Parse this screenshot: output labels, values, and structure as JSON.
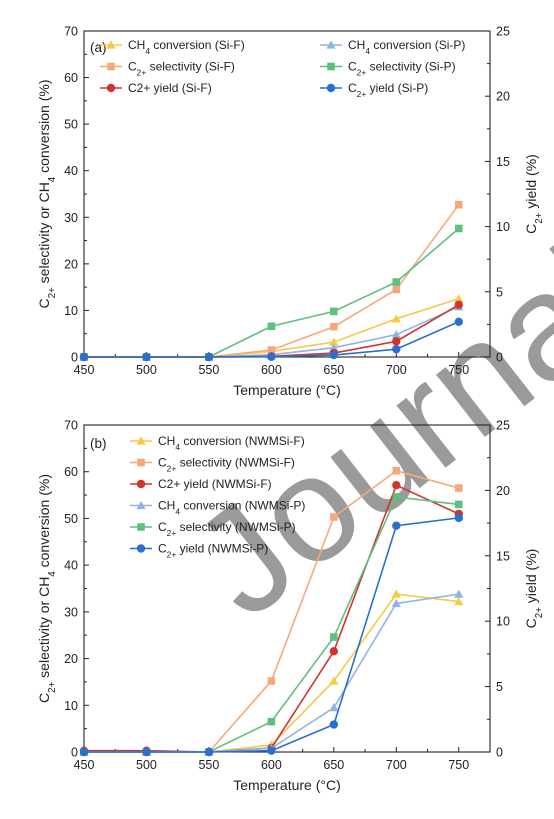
{
  "watermark": "Journal Pre-proof",
  "colors": {
    "ch4_f": "#f7c948",
    "c2sel_f": "#f5a97a",
    "yield_f": "#d0342c",
    "ch4_p": "#8fb4e3",
    "c2sel_p": "#5fbf80",
    "yield_p": "#2a6fd0"
  },
  "chart_data": [
    {
      "type": "line",
      "panel_label": "(a)",
      "xlabel_parts": [
        "Temperature (",
        "°",
        "C)"
      ],
      "ylabel_parts": [
        {
          "t": "C",
          "s": ""
        },
        {
          "t": "2+",
          "s": "sub"
        },
        {
          "t": " selectivity or CH",
          "s": ""
        },
        {
          "t": "4",
          "s": "sub"
        },
        {
          "t": " conversion (%)",
          "s": ""
        }
      ],
      "y2label_parts": [
        {
          "t": "C",
          "s": ""
        },
        {
          "t": "2+",
          "s": "sub"
        },
        {
          "t": " yield (%)",
          "s": ""
        }
      ],
      "x": [
        450,
        500,
        550,
        600,
        650,
        700,
        750
      ],
      "xlim": [
        450,
        775
      ],
      "ylim": [
        0,
        70
      ],
      "y2lim": [
        0,
        25
      ],
      "xticks": [
        "450",
        "500",
        "550",
        "600",
        "650",
        "700",
        "750"
      ],
      "yticks": [
        "0",
        "10",
        "20",
        "30",
        "40",
        "50",
        "60",
        "70"
      ],
      "y2ticks": [
        "0",
        "5",
        "10",
        "15",
        "20",
        "25"
      ],
      "legend_columns": 2,
      "series": [
        {
          "key": "ch4_f",
          "name_parts": [
            {
              "t": "CH",
              "s": ""
            },
            {
              "t": "4",
              "s": "sub"
            },
            {
              "t": " conversion (Si-F)",
              "s": ""
            }
          ],
          "marker": "triangle",
          "axis": "left",
          "values": [
            0,
            0,
            0,
            1.2,
            3.2,
            8.2,
            12.5
          ]
        },
        {
          "key": "ch4_p",
          "name_parts": [
            {
              "t": "CH",
              "s": ""
            },
            {
              "t": "4",
              "s": "sub"
            },
            {
              "t": " conversion (Si-P)",
              "s": ""
            }
          ],
          "marker": "triangle",
          "axis": "left",
          "values": [
            0,
            0,
            0,
            0.5,
            2.0,
            4.8,
            10.8
          ]
        },
        {
          "key": "c2sel_f",
          "name_parts": [
            {
              "t": "C",
              "s": ""
            },
            {
              "t": "2+",
              "s": "sub"
            },
            {
              "t": " selectivity (Si-F)",
              "s": ""
            }
          ],
          "marker": "square",
          "axis": "left",
          "values": [
            0,
            0,
            0,
            1.5,
            6.5,
            14.5,
            32.7
          ]
        },
        {
          "key": "c2sel_p",
          "name_parts": [
            {
              "t": "C",
              "s": ""
            },
            {
              "t": "2+",
              "s": "sub"
            },
            {
              "t": " selectivity (Si-P)",
              "s": ""
            }
          ],
          "marker": "square",
          "axis": "left",
          "values": [
            0,
            0,
            0,
            6.6,
            9.8,
            16.1,
            27.6
          ]
        },
        {
          "key": "yield_f",
          "name_parts": [
            {
              "t": "C2+ yield (Si-F)",
              "s": ""
            }
          ],
          "marker": "circle",
          "axis": "right",
          "values": [
            0,
            0,
            0,
            0.05,
            0.3,
            1.2,
            4.0
          ]
        },
        {
          "key": "yield_p",
          "name_parts": [
            {
              "t": "C",
              "s": ""
            },
            {
              "t": "2+",
              "s": "sub"
            },
            {
              "t": " yield (Si-P)",
              "s": ""
            }
          ],
          "marker": "circle",
          "axis": "right",
          "values": [
            0,
            0,
            0,
            0.02,
            0.15,
            0.6,
            2.7
          ]
        }
      ]
    },
    {
      "type": "line",
      "panel_label": "(b)",
      "xlabel_parts": [
        "Temperature (",
        "°",
        "C)"
      ],
      "ylabel_parts": [
        {
          "t": "C",
          "s": ""
        },
        {
          "t": "2+",
          "s": "sub"
        },
        {
          "t": " selectivity or CH",
          "s": ""
        },
        {
          "t": "4",
          "s": "sub"
        },
        {
          "t": " conversion (%)",
          "s": ""
        }
      ],
      "y2label_parts": [
        {
          "t": "C",
          "s": ""
        },
        {
          "t": "2+",
          "s": "sub"
        },
        {
          "t": " yield (%)",
          "s": ""
        }
      ],
      "x": [
        450,
        500,
        550,
        600,
        650,
        700,
        750
      ],
      "xlim": [
        450,
        775
      ],
      "ylim": [
        0,
        70
      ],
      "y2lim": [
        0,
        25
      ],
      "xticks": [
        "450",
        "500",
        "550",
        "600",
        "650",
        "700",
        "750"
      ],
      "yticks": [
        "0",
        "10",
        "20",
        "30",
        "40",
        "50",
        "60",
        "70"
      ],
      "y2ticks": [
        "0",
        "5",
        "10",
        "15",
        "20",
        "25"
      ],
      "legend_columns": 1,
      "series": [
        {
          "key": "ch4_f",
          "name_parts": [
            {
              "t": "CH",
              "s": ""
            },
            {
              "t": "4",
              "s": "sub"
            },
            {
              "t": " conversion (NWMSi-F)",
              "s": ""
            }
          ],
          "marker": "triangle",
          "axis": "left",
          "values": [
            0.2,
            0.1,
            0,
            1.5,
            15.2,
            33.8,
            32.2
          ]
        },
        {
          "key": "c2sel_f",
          "name_parts": [
            {
              "t": "C",
              "s": ""
            },
            {
              "t": "2+",
              "s": "sub"
            },
            {
              "t": " selectivity (NWMSi-F)",
              "s": ""
            }
          ],
          "marker": "square",
          "axis": "left",
          "values": [
            0,
            0,
            0,
            15.2,
            50.3,
            60.2,
            56.5
          ]
        },
        {
          "key": "yield_f",
          "name_parts": [
            {
              "t": "C2+ yield (NWMSi-F)",
              "s": ""
            }
          ],
          "marker": "circle",
          "axis": "right",
          "values": [
            0.1,
            0.1,
            0,
            0.3,
            7.7,
            20.4,
            18.2
          ]
        },
        {
          "key": "ch4_p",
          "name_parts": [
            {
              "t": "CH",
              "s": ""
            },
            {
              "t": "4",
              "s": "sub"
            },
            {
              "t": " conversion (NWMSi-P)",
              "s": ""
            }
          ],
          "marker": "triangle",
          "axis": "left",
          "values": [
            0,
            0,
            0,
            0.8,
            9.5,
            31.8,
            33.8
          ]
        },
        {
          "key": "c2sel_p",
          "name_parts": [
            {
              "t": "C",
              "s": ""
            },
            {
              "t": "2+",
              "s": "sub"
            },
            {
              "t": " selectivity (NWMSi-P)",
              "s": ""
            }
          ],
          "marker": "square",
          "axis": "left",
          "values": [
            0,
            0,
            0,
            6.5,
            24.6,
            54.6,
            53.0
          ]
        },
        {
          "key": "yield_p",
          "name_parts": [
            {
              "t": "C",
              "s": ""
            },
            {
              "t": "2+",
              "s": "sub"
            },
            {
              "t": " yield (NWMSi-P)",
              "s": ""
            }
          ],
          "marker": "circle",
          "axis": "right",
          "values": [
            0,
            0,
            0,
            0.1,
            2.1,
            17.3,
            17.9
          ]
        }
      ]
    }
  ]
}
